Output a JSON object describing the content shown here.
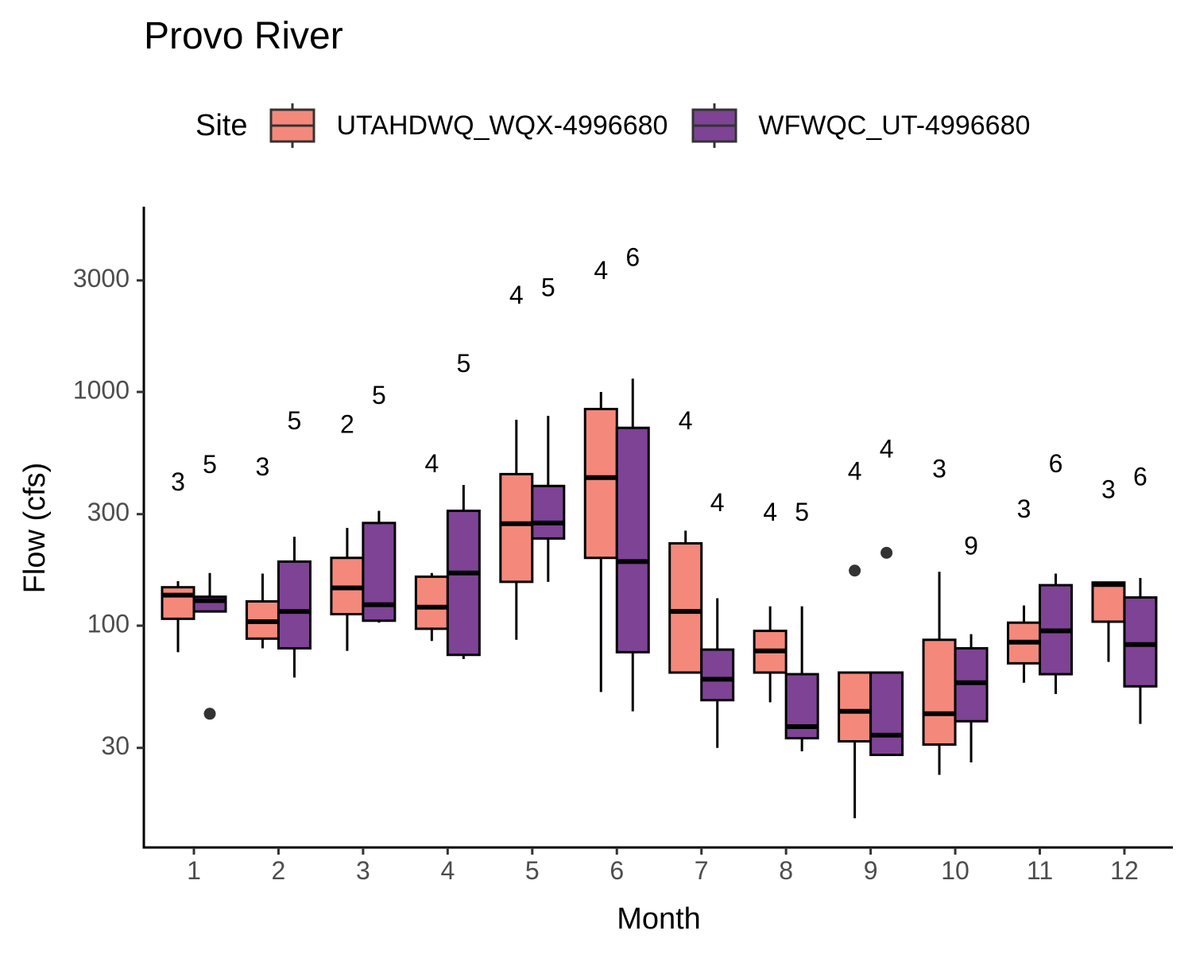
{
  "chart_data": {
    "type": "boxplot",
    "title": "Provo River",
    "xlabel": "Month",
    "ylabel": "Flow (cfs)",
    "y_scale": "log10",
    "ylim": [
      10,
      6000
    ],
    "y_ticks": [
      30,
      100,
      300,
      1000,
      3000
    ],
    "y_tick_labels": [
      "30",
      "100",
      "300",
      "1000",
      "3000"
    ],
    "categories": [
      "1",
      "2",
      "3",
      "4",
      "5",
      "6",
      "7",
      "8",
      "9",
      "10",
      "11",
      "12"
    ],
    "legend": {
      "title": "Site",
      "position": "top"
    },
    "grid": false,
    "series": [
      {
        "name": "UTAHDWQ_WQX-4996680",
        "color": "#F4897B",
        "boxes": [
          {
            "month": "1",
            "whisker_low": 77,
            "q1": 107,
            "median": 135,
            "q3": 146,
            "whisker_high": 155,
            "n": "3",
            "label_y": 405,
            "outliers": []
          },
          {
            "month": "2",
            "whisker_low": 80,
            "q1": 88,
            "median": 104,
            "q3": 127,
            "whisker_high": 167,
            "n": "3",
            "label_y": 470,
            "outliers": []
          },
          {
            "month": "3",
            "whisker_low": 78,
            "q1": 112,
            "median": 145,
            "q3": 195,
            "whisker_high": 262,
            "n": "2",
            "label_y": 715,
            "outliers": []
          },
          {
            "month": "4",
            "whisker_low": 86,
            "q1": 97,
            "median": 120,
            "q3": 162,
            "whisker_high": 168,
            "n": "4",
            "label_y": 485,
            "outliers": []
          },
          {
            "month": "5",
            "whisker_low": 87,
            "q1": 154,
            "median": 273,
            "q3": 445,
            "whisker_high": 760,
            "n": "4",
            "label_y": 2550,
            "outliers": []
          },
          {
            "month": "6",
            "whisker_low": 52,
            "q1": 195,
            "median": 430,
            "q3": 845,
            "whisker_high": 1000,
            "n": "4",
            "label_y": 3250,
            "outliers": []
          },
          {
            "month": "7",
            "whisker_low": 63,
            "q1": 63,
            "median": 115,
            "q3": 225,
            "whisker_high": 255,
            "n": "4",
            "label_y": 740,
            "outliers": []
          },
          {
            "month": "8",
            "whisker_low": 47,
            "q1": 63,
            "median": 78,
            "q3": 95,
            "whisker_high": 121,
            "n": "4",
            "label_y": 300,
            "outliers": []
          },
          {
            "month": "9",
            "whisker_low": 15,
            "q1": 32,
            "median": 43,
            "q3": 63,
            "whisker_high": 63,
            "n": "4",
            "label_y": 450,
            "outliers": [
              172
            ]
          },
          {
            "month": "10",
            "whisker_low": 23,
            "q1": 31,
            "median": 42,
            "q3": 87,
            "whisker_high": 170,
            "n": "3",
            "label_y": 460,
            "outliers": []
          },
          {
            "month": "11",
            "whisker_low": 57,
            "q1": 69,
            "median": 85,
            "q3": 103,
            "whisker_high": 122,
            "n": "3",
            "label_y": 310,
            "outliers": []
          },
          {
            "month": "12",
            "whisker_low": 70,
            "q1": 104,
            "median": 150,
            "q3": 153,
            "whisker_high": 153,
            "n": "3",
            "label_y": 375,
            "outliers": []
          }
        ]
      },
      {
        "name": "WFWQC_UT-4996680",
        "color": "#7E4394",
        "boxes": [
          {
            "month": "1",
            "whisker_low": 115,
            "q1": 115,
            "median": 128,
            "q3": 133,
            "whisker_high": 168,
            "n": "5",
            "label_y": 480,
            "outliers": [
              42
            ]
          },
          {
            "month": "2",
            "whisker_low": 60,
            "q1": 80,
            "median": 115,
            "q3": 188,
            "whisker_high": 240,
            "n": "5",
            "label_y": 740,
            "outliers": []
          },
          {
            "month": "3",
            "whisker_low": 103,
            "q1": 105,
            "median": 123,
            "q3": 275,
            "whisker_high": 310,
            "n": "5",
            "label_y": 950,
            "outliers": []
          },
          {
            "month": "4",
            "whisker_low": 72,
            "q1": 75,
            "median": 168,
            "q3": 310,
            "whisker_high": 400,
            "n": "5",
            "label_y": 1300,
            "outliers": []
          },
          {
            "month": "5",
            "whisker_low": 154,
            "q1": 236,
            "median": 275,
            "q3": 396,
            "whisker_high": 790,
            "n": "5",
            "label_y": 2750,
            "outliers": []
          },
          {
            "month": "6",
            "whisker_low": 43,
            "q1": 77,
            "median": 188,
            "q3": 702,
            "whisker_high": 1140,
            "n": "6",
            "label_y": 3700,
            "outliers": []
          },
          {
            "month": "7",
            "whisker_low": 30,
            "q1": 48,
            "median": 59,
            "q3": 79,
            "whisker_high": 131,
            "n": "4",
            "label_y": 330,
            "outliers": []
          },
          {
            "month": "8",
            "whisker_low": 29,
            "q1": 33,
            "median": 37,
            "q3": 62,
            "whisker_high": 121,
            "n": "5",
            "label_y": 300,
            "outliers": []
          },
          {
            "month": "9",
            "whisker_low": 28,
            "q1": 28,
            "median": 34,
            "q3": 63,
            "whisker_high": 63,
            "n": "4",
            "label_y": 560,
            "outliers": [
              205
            ]
          },
          {
            "month": "10",
            "whisker_low": 26,
            "q1": 39,
            "median": 57,
            "q3": 80,
            "whisker_high": 92,
            "n": "9",
            "label_y": 215,
            "outliers": []
          },
          {
            "month": "11",
            "whisker_low": 51,
            "q1": 62,
            "median": 95,
            "q3": 149,
            "whisker_high": 167,
            "n": "6",
            "label_y": 485,
            "outliers": []
          },
          {
            "month": "12",
            "whisker_low": 38,
            "q1": 55,
            "median": 83,
            "q3": 132,
            "whisker_high": 160,
            "n": "6",
            "label_y": 425,
            "outliers": []
          }
        ]
      }
    ]
  }
}
